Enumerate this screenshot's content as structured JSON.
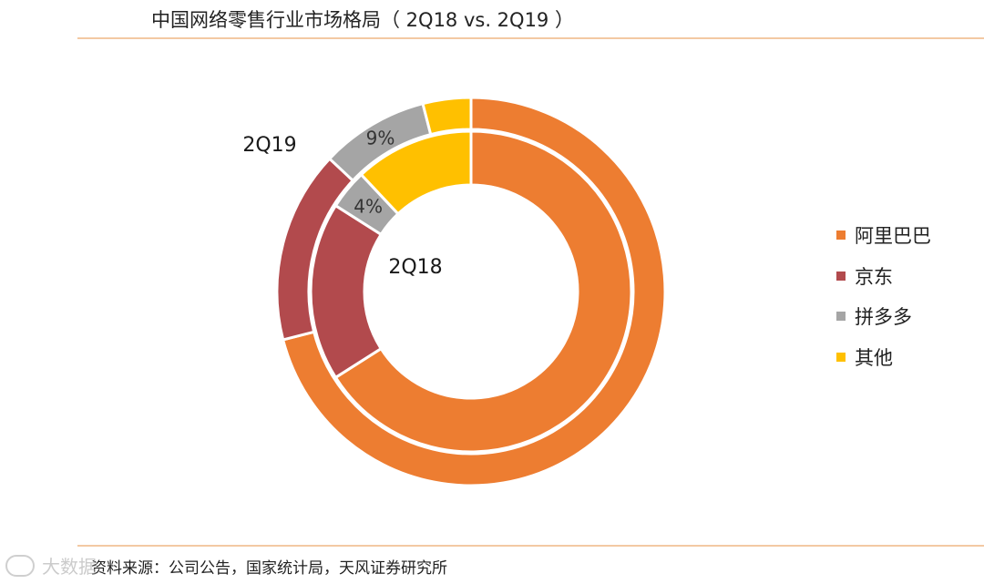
{
  "title": "中国网络零售行业市场格局（ 2Q18 vs. 2Q19 ）",
  "source": "资料来源：公司公告，国家统计局，天风证券研究所",
  "watermark": "大数据",
  "chart_data": {
    "type": "pie",
    "variant": "nested-donut",
    "categories": [
      "阿里巴巴",
      "京东",
      "拼多多",
      "其他"
    ],
    "colors": [
      "#ED7D31",
      "#B24A4D",
      "#A5A5A5",
      "#FFC000"
    ],
    "series": [
      {
        "name": "2Q18",
        "ring": "inner",
        "values": [
          66,
          18,
          4,
          12
        ],
        "labels": [
          "",
          "",
          "4%",
          ""
        ]
      },
      {
        "name": "2Q19",
        "ring": "outer",
        "values": [
          71,
          16,
          9,
          4
        ],
        "labels": [
          "",
          "",
          "9%",
          ""
        ]
      }
    ],
    "legend": {
      "position": "right"
    }
  }
}
